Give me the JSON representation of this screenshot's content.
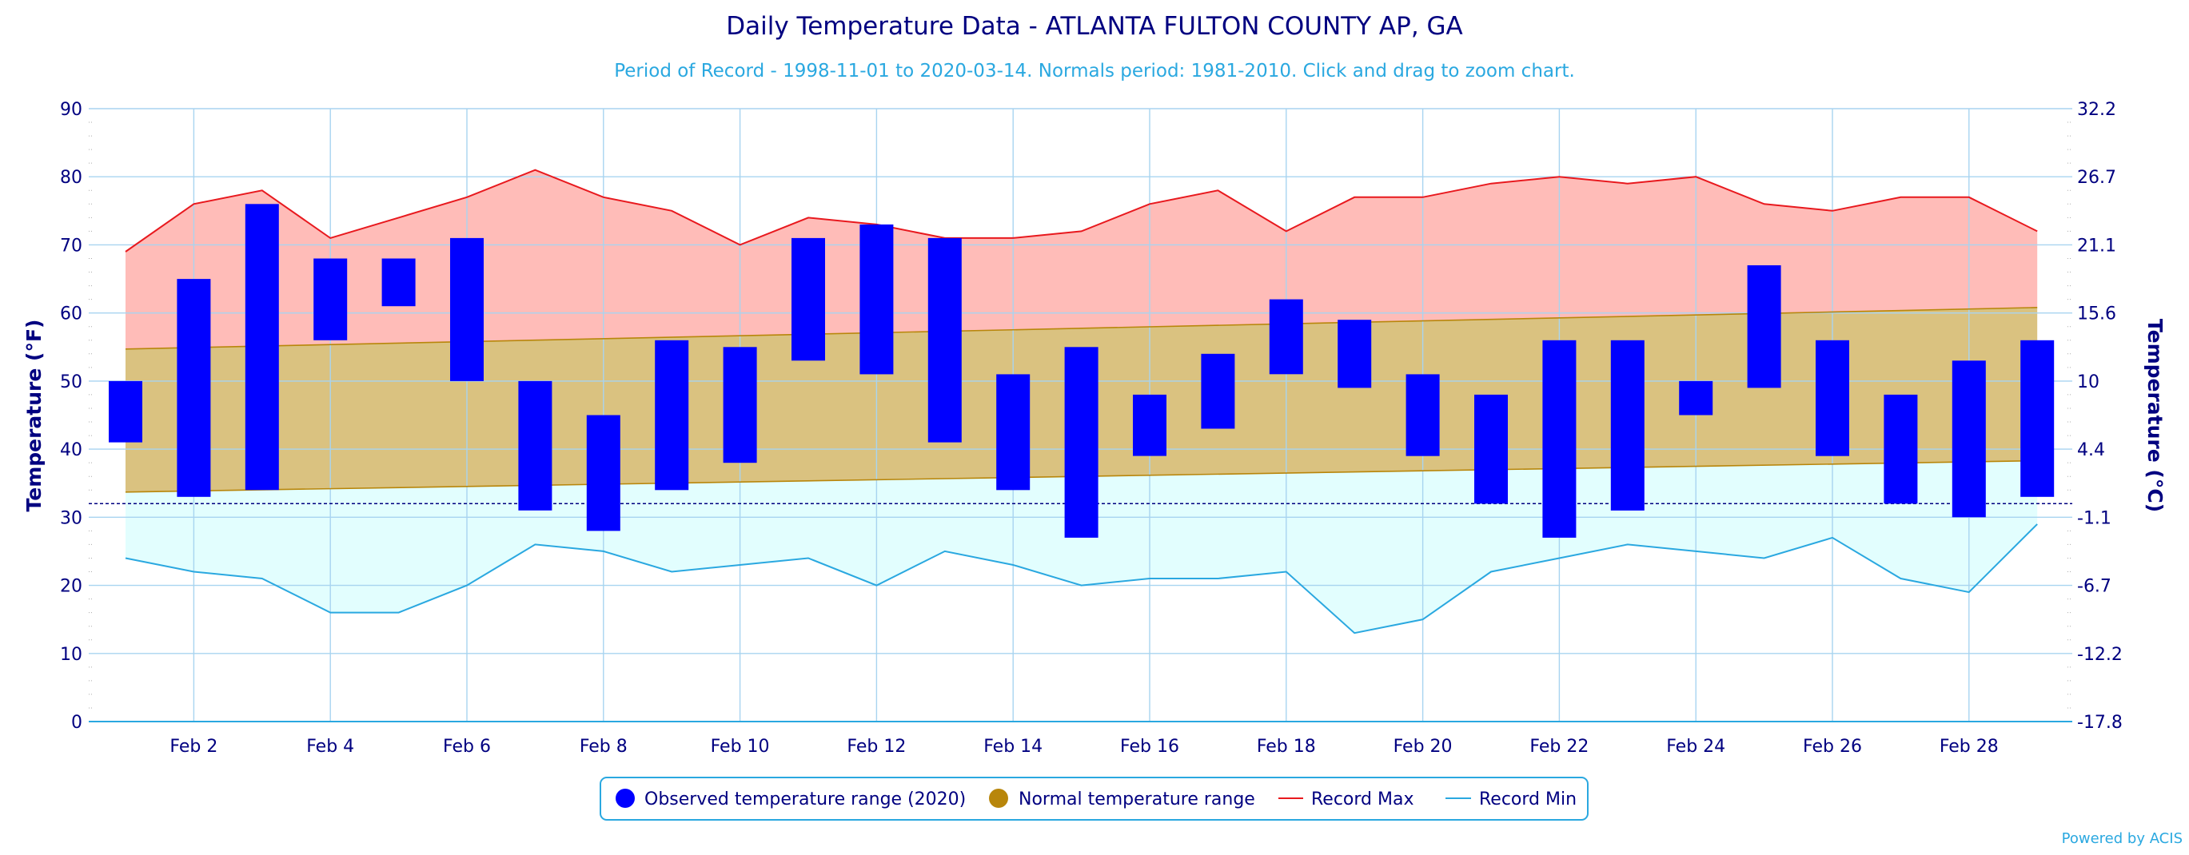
{
  "chart_data": {
    "type": "bar",
    "title": "Daily Temperature Data - ATLANTA FULTON COUNTY AP, GA",
    "subtitle": "Period of Record - 1998-11-01 to 2020-03-14. Normals period: 1981-2010. Click and drag to zoom chart.",
    "ylabel": "Temperature (°F)",
    "ylabel_right": "Temperature (°C)",
    "ylim": [
      0,
      90
    ],
    "x_days": [
      1,
      29
    ],
    "freezing_line": 32,
    "y_ticks": [
      0,
      10,
      20,
      30,
      40,
      50,
      60,
      70,
      80,
      90
    ],
    "y_ticks_right": [
      "-17.8",
      "-12.2",
      "-6.7",
      "-1.1",
      "4.4",
      "10",
      "15.6",
      "21.1",
      "26.7",
      "32.2"
    ],
    "x_tick_days": [
      2,
      4,
      6,
      8,
      10,
      12,
      14,
      16,
      18,
      20,
      22,
      24,
      26,
      28
    ],
    "x_tick_labels": [
      "Feb 2",
      "Feb 4",
      "Feb 6",
      "Feb 8",
      "Feb 10",
      "Feb 12",
      "Feb 14",
      "Feb 16",
      "Feb 18",
      "Feb 20",
      "Feb 22",
      "Feb 24",
      "Feb 26",
      "Feb 28"
    ],
    "grid": true,
    "legend_position": "bottom-center",
    "series": [
      {
        "name": "Observed temperature range (2020)",
        "color": "#0000ff",
        "days": [
          1,
          2,
          3,
          4,
          5,
          6,
          7,
          8,
          9,
          10,
          11,
          12,
          13,
          14,
          15,
          16,
          17,
          18,
          19,
          20,
          21,
          22,
          23,
          24,
          25,
          26,
          27,
          28,
          29
        ],
        "low": [
          41,
          33,
          34,
          56,
          61,
          50,
          31,
          28,
          34,
          38,
          53,
          51,
          41,
          34,
          27,
          39,
          43,
          51,
          49,
          39,
          32,
          27,
          31,
          45,
          49,
          39,
          32,
          30,
          33
        ],
        "high": [
          50,
          65,
          76,
          68,
          68,
          71,
          50,
          45,
          56,
          55,
          71,
          73,
          71,
          51,
          55,
          48,
          54,
          62,
          59,
          51,
          48,
          56,
          56,
          50,
          67,
          56,
          48,
          53,
          56
        ]
      },
      {
        "name": "Normal temperature range",
        "color": "#b8860b",
        "days": [
          1,
          29
        ],
        "low": [
          33.7,
          38.3
        ],
        "high": [
          54.7,
          60.8
        ]
      },
      {
        "name": "Record Max",
        "color": "#e8191e",
        "days": [
          1,
          2,
          3,
          4,
          5,
          6,
          7,
          8,
          9,
          10,
          11,
          12,
          13,
          14,
          15,
          16,
          17,
          18,
          19,
          20,
          21,
          22,
          23,
          24,
          25,
          26,
          27,
          28,
          29
        ],
        "values": [
          69,
          76,
          78,
          71,
          74,
          77,
          81,
          77,
          75,
          70,
          74,
          73,
          71,
          71,
          72,
          76,
          78,
          72,
          77,
          77,
          79,
          80,
          79,
          80,
          76,
          75,
          77,
          77,
          72
        ]
      },
      {
        "name": "Record Min",
        "color": "#2aa8e0",
        "days": [
          1,
          2,
          3,
          4,
          5,
          6,
          7,
          8,
          9,
          10,
          11,
          12,
          13,
          14,
          15,
          16,
          17,
          18,
          19,
          20,
          21,
          22,
          23,
          24,
          25,
          26,
          27,
          28,
          29
        ],
        "values": [
          24,
          22,
          21,
          16,
          16,
          20,
          26,
          25,
          22,
          23,
          24,
          20,
          25,
          23,
          20,
          21,
          21,
          22,
          13,
          15,
          22,
          24,
          26,
          25,
          24,
          27,
          21,
          19,
          29
        ]
      }
    ],
    "credit": "Powered by ACIS"
  },
  "colors": {
    "title": "#000080",
    "subtitle": "#2aa8e0",
    "axis_text": "#000080",
    "record_max_fill": "#ffbcb8",
    "normal_fill": "#dac280",
    "record_min_fill": "#e2fefe",
    "grid": "#a8d4f0",
    "freeze_line": "#000080",
    "legend_border": "#2aa8e0"
  }
}
